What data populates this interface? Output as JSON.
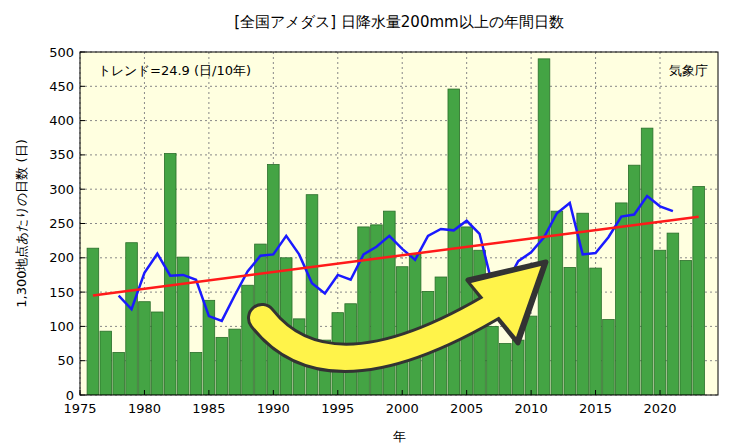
{
  "chart_data": {
    "type": "bar",
    "title": "[全国アメダス] 日降水量200mm以上の年間日数",
    "annotations": [
      "トレンド=24.9 (日/10年)",
      "気象庁"
    ],
    "x_label": "年",
    "y_label": "1,300地点あたりの日数 (日)",
    "x": [
      1976,
      1977,
      1978,
      1979,
      1980,
      1981,
      1982,
      1983,
      1984,
      1985,
      1986,
      1987,
      1988,
      1989,
      1990,
      1991,
      1992,
      1993,
      1994,
      1995,
      1996,
      1997,
      1998,
      1999,
      2000,
      2001,
      2002,
      2003,
      2004,
      2005,
      2006,
      2007,
      2008,
      2009,
      2010,
      2011,
      2012,
      2013,
      2014,
      2015,
      2016,
      2017,
      2018,
      2019,
      2020,
      2021,
      2022,
      2023
    ],
    "series": [
      {
        "type": "bar",
        "color": "#44a444",
        "values": [
          214,
          93,
          62,
          222,
          136,
          121,
          352,
          201,
          62,
          138,
          84,
          96,
          160,
          220,
          336,
          200,
          111,
          292,
          80,
          120,
          133,
          245,
          248,
          268,
          187,
          205,
          151,
          172,
          446,
          245,
          211,
          100,
          75,
          80,
          115,
          490,
          268,
          186,
          265,
          185,
          110,
          280,
          335,
          389,
          211,
          236,
          196,
          304
        ]
      },
      {
        "type": "line",
        "color": "#1a1aff",
        "values": [
          null,
          null,
          145,
          125,
          178,
          206,
          174,
          175,
          168,
          115,
          108,
          145,
          180,
          203,
          205,
          232,
          205,
          163,
          148,
          175,
          168,
          205,
          216,
          232,
          213,
          197,
          232,
          242,
          240,
          254,
          235,
          160,
          160,
          195,
          208,
          230,
          265,
          280,
          205,
          207,
          230,
          260,
          263,
          290,
          275,
          268,
          null,
          null
        ]
      },
      {
        "type": "line",
        "color": "#ff1a1a",
        "x": [
          1976,
          2023
        ],
        "values": [
          145,
          260
        ]
      }
    ],
    "xlim": [
      1975,
      2024.5
    ],
    "xticks": [
      1975,
      1980,
      1985,
      1990,
      1995,
      2000,
      2005,
      2010,
      2015,
      2020
    ],
    "ylim": [
      0,
      500
    ],
    "yticks": [
      0,
      50,
      100,
      150,
      200,
      250,
      300,
      350,
      400,
      450,
      500
    ],
    "grid": true
  }
}
